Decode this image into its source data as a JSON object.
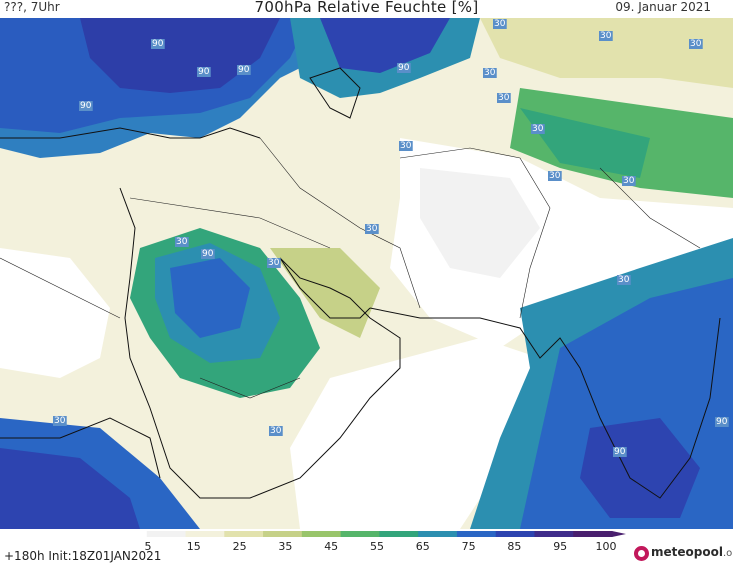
{
  "header": {
    "left": "???, 7Uhr",
    "title": "700hPa Relative Feuchte [%]",
    "date": "09. Januar 2021"
  },
  "map": {
    "contour_labels": [
      "90",
      "30",
      "30",
      "30",
      "30",
      "30",
      "30",
      "30",
      "30",
      "30",
      "30",
      "90",
      "30",
      "30",
      "30",
      "90",
      "30",
      "90",
      "90",
      "90",
      "90",
      "90",
      "30"
    ]
  },
  "legend": {
    "ticks": [
      "5",
      "15",
      "25",
      "35",
      "45",
      "55",
      "65",
      "75",
      "85",
      "95",
      "100"
    ],
    "colors": [
      "#ffffff",
      "#f2f2f2",
      "#f3f1dc",
      "#e2e2ad",
      "#c6d188",
      "#99c56b",
      "#56b56a",
      "#33a57b",
      "#2c8fb0",
      "#2a66c4",
      "#2d44b0",
      "#3f2c8a",
      "#4a1f6e"
    ]
  },
  "footer": {
    "run": "+180h  Init:18Z01JAN2021",
    "brand_main": "meteopool",
    "brand_tld": ".org"
  }
}
